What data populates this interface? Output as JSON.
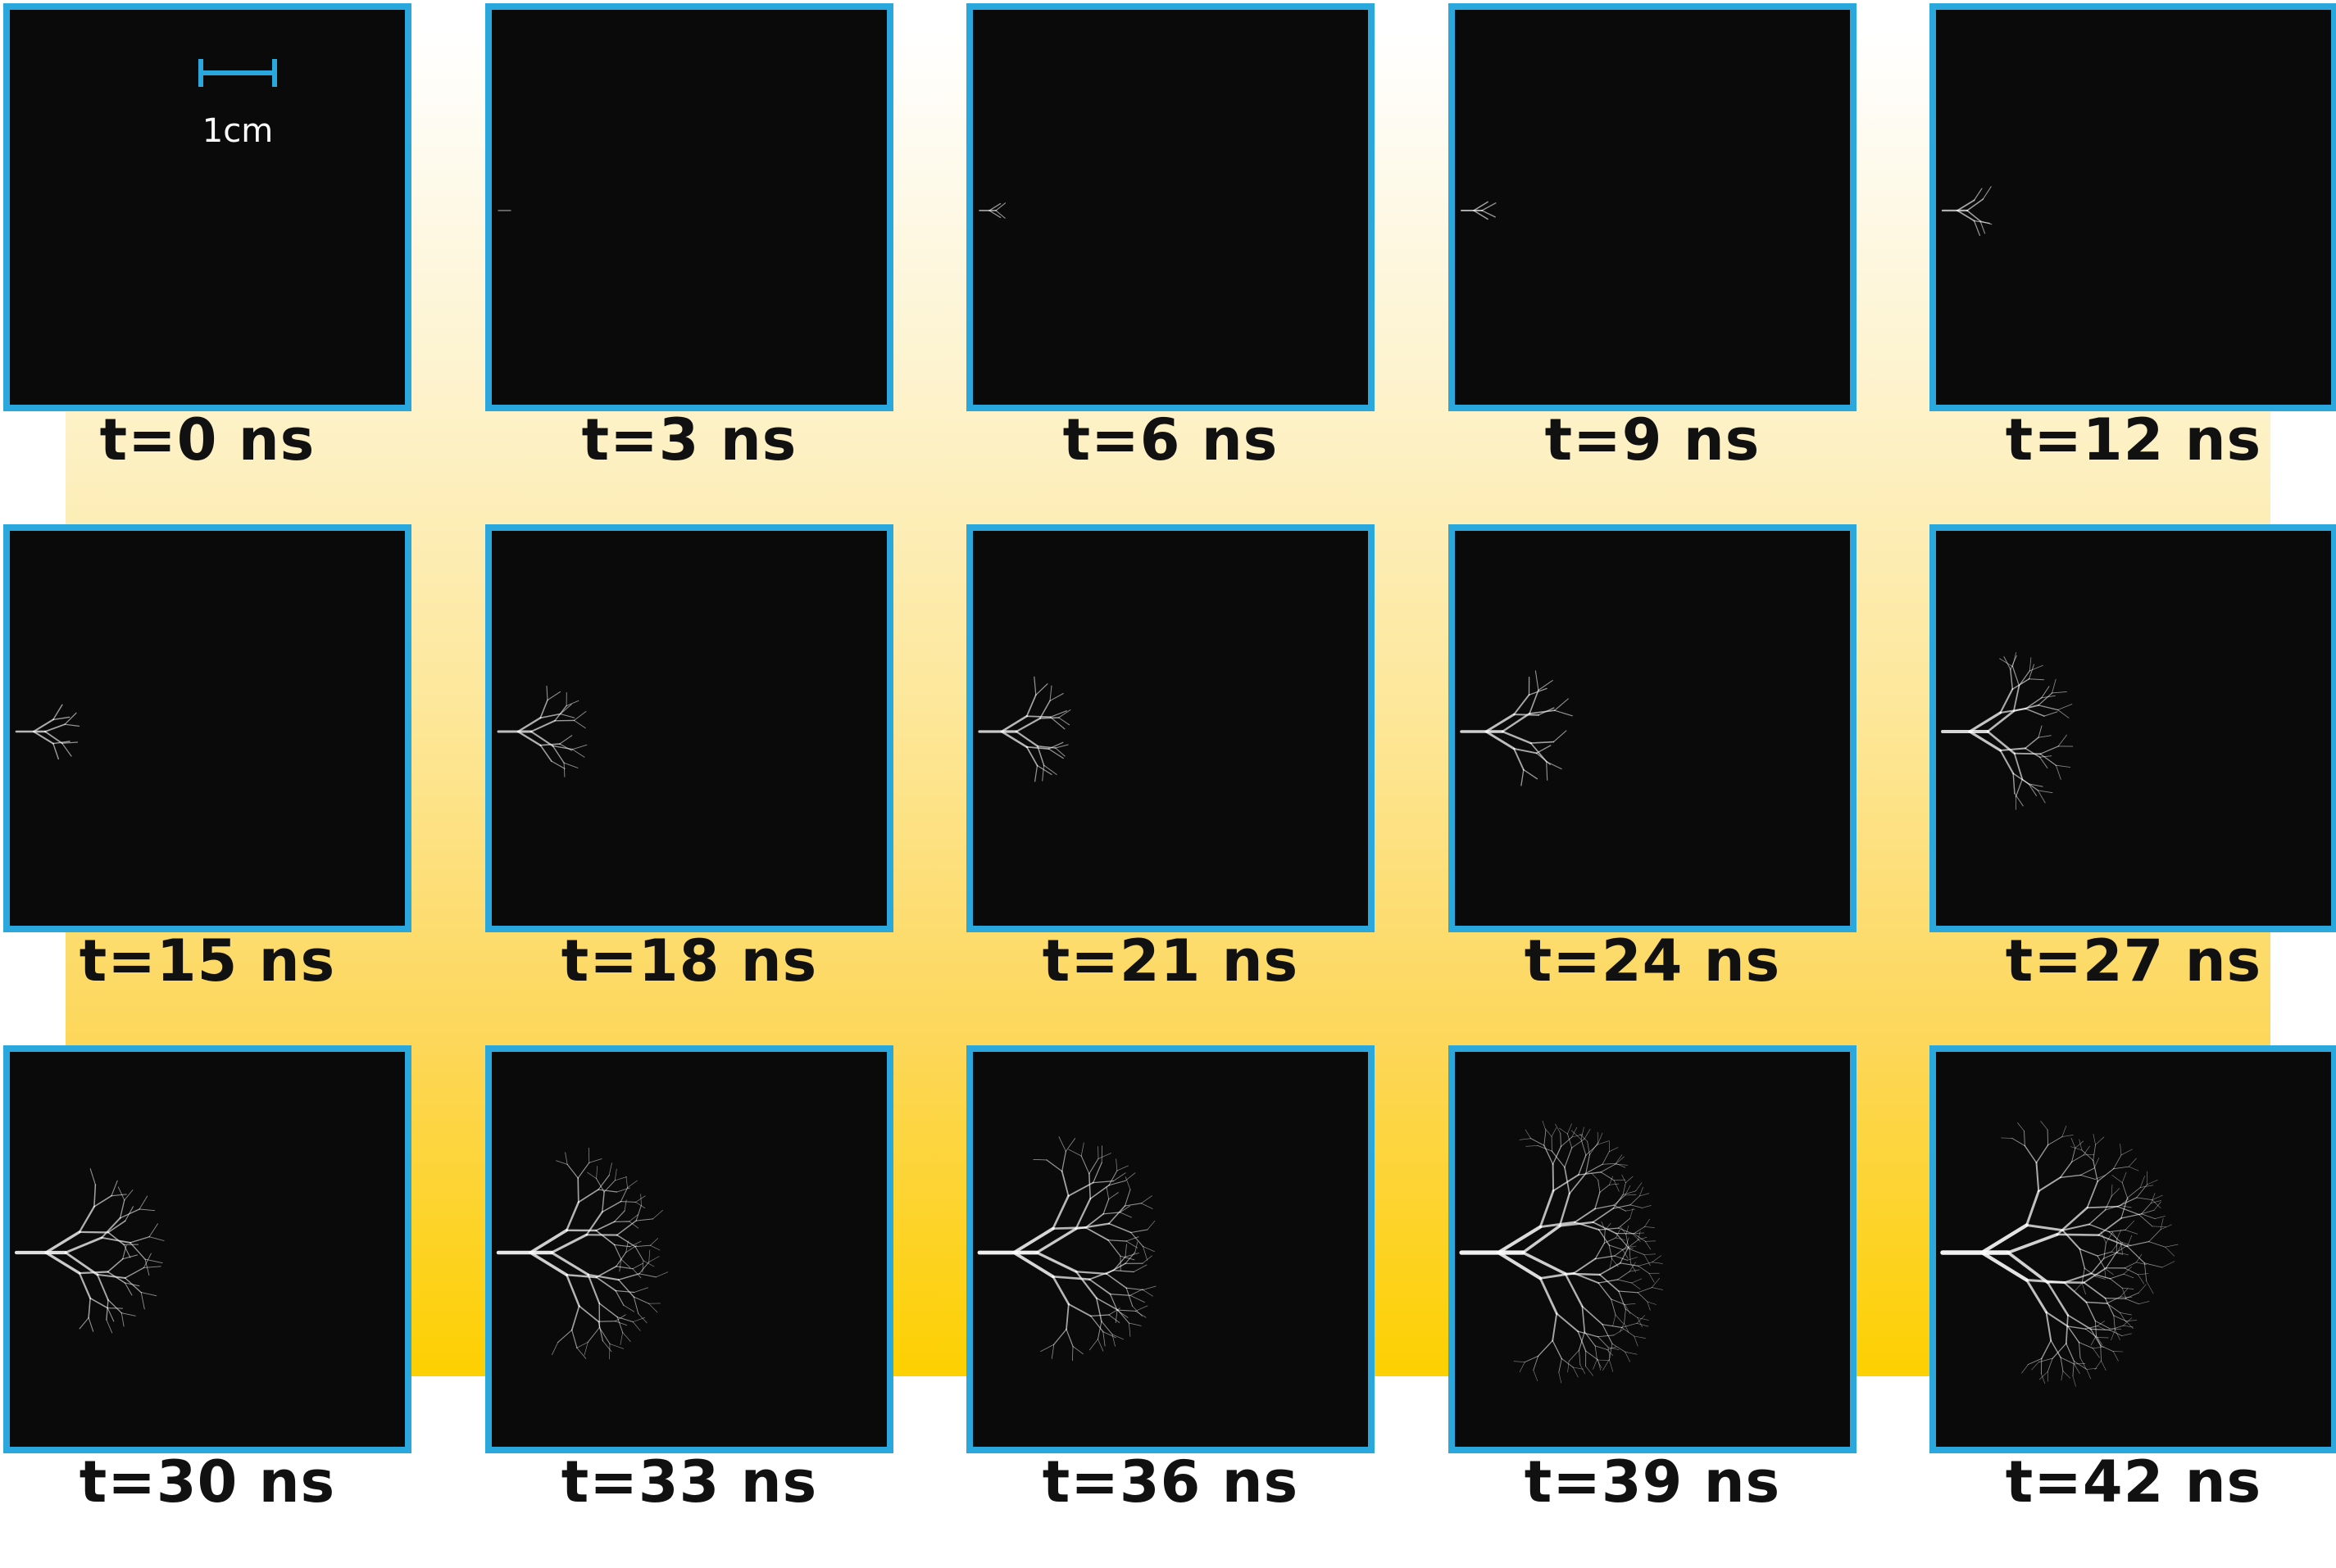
{
  "panels": [
    {
      "label": "t=0 ns",
      "time_ns": 0
    },
    {
      "label": "t=3 ns",
      "time_ns": 3
    },
    {
      "label": "t=6 ns",
      "time_ns": 6
    },
    {
      "label": "t=9 ns",
      "time_ns": 9
    },
    {
      "label": "t=12 ns",
      "time_ns": 12
    },
    {
      "label": "t=15 ns",
      "time_ns": 15
    },
    {
      "label": "t=18 ns",
      "time_ns": 18
    },
    {
      "label": "t=21 ns",
      "time_ns": 21
    },
    {
      "label": "t=24 ns",
      "time_ns": 24
    },
    {
      "label": "t=27 ns",
      "time_ns": 27
    },
    {
      "label": "t=30 ns",
      "time_ns": 30
    },
    {
      "label": "t=33 ns",
      "time_ns": 33
    },
    {
      "label": "t=36 ns",
      "time_ns": 36
    },
    {
      "label": "t=39 ns",
      "time_ns": 39
    },
    {
      "label": "t=42 ns",
      "time_ns": 42
    }
  ],
  "scale_bar": {
    "label": "1cm"
  },
  "colors": {
    "frame": "#2aa8de",
    "image_bg": "#0a0a0a",
    "discharge": "#ffffff",
    "gradient_bottom": "#fdd000"
  }
}
